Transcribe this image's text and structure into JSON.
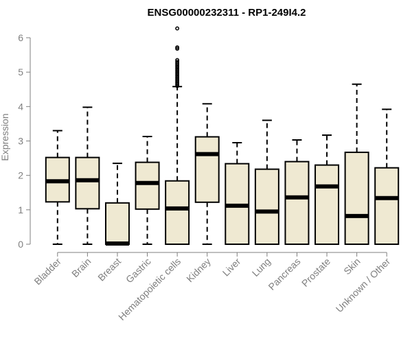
{
  "chart_data": {
    "type": "box",
    "title": "ENSG00000232311 - RP1-249I4.2",
    "ylabel": "Expression",
    "xlabel": "",
    "ylim": [
      0,
      6
    ],
    "yticks": [
      0,
      1,
      2,
      3,
      4,
      5,
      6
    ],
    "grid": false,
    "box_fill": "#efe9d2",
    "box_stroke": "#000000",
    "axis_color": "#7f7f7f",
    "categories": [
      "Bladder",
      "Brain",
      "Breast",
      "Gastric",
      "Hematopoietic cells",
      "Kidney",
      "Liver",
      "Lung",
      "Pancreas",
      "Prostate",
      "Skin",
      "Unknown / Other"
    ],
    "boxes": [
      {
        "min": 0.0,
        "q1": 1.23,
        "median": 1.83,
        "q3": 2.52,
        "max": 3.3,
        "outliers": []
      },
      {
        "min": 0.0,
        "q1": 1.03,
        "median": 1.86,
        "q3": 2.52,
        "max": 3.98,
        "outliers": []
      },
      {
        "min": 0.0,
        "q1": 0.0,
        "median": 0.02,
        "q3": 1.2,
        "max": 2.35,
        "outliers": []
      },
      {
        "min": 0.0,
        "q1": 1.02,
        "median": 1.78,
        "q3": 2.38,
        "max": 3.13,
        "outliers": []
      },
      {
        "min": 0.0,
        "q1": 0.0,
        "median": 1.04,
        "q3": 1.84,
        "max": 4.58,
        "outliers": [
          4.6,
          4.65,
          4.7,
          4.75,
          4.8,
          4.85,
          4.9,
          4.95,
          5.0,
          5.05,
          5.1,
          5.15,
          5.2,
          5.25,
          5.3,
          5.35,
          5.68,
          5.72,
          6.27
        ]
      },
      {
        "min": 0.0,
        "q1": 1.22,
        "median": 2.62,
        "q3": 3.12,
        "max": 4.08,
        "outliers": []
      },
      {
        "min": 0.0,
        "q1": 0.0,
        "median": 1.12,
        "q3": 2.34,
        "max": 2.95,
        "outliers": []
      },
      {
        "min": 0.0,
        "q1": 0.0,
        "median": 0.95,
        "q3": 2.18,
        "max": 3.6,
        "outliers": []
      },
      {
        "min": 0.0,
        "q1": 0.0,
        "median": 1.36,
        "q3": 2.4,
        "max": 3.03,
        "outliers": []
      },
      {
        "min": 0.0,
        "q1": 0.0,
        "median": 1.68,
        "q3": 2.3,
        "max": 3.17,
        "outliers": []
      },
      {
        "min": 0.0,
        "q1": 0.0,
        "median": 0.82,
        "q3": 2.67,
        "max": 4.65,
        "outliers": []
      },
      {
        "min": 0.0,
        "q1": 0.0,
        "median": 1.34,
        "q3": 2.22,
        "max": 3.92,
        "outliers": []
      }
    ]
  }
}
